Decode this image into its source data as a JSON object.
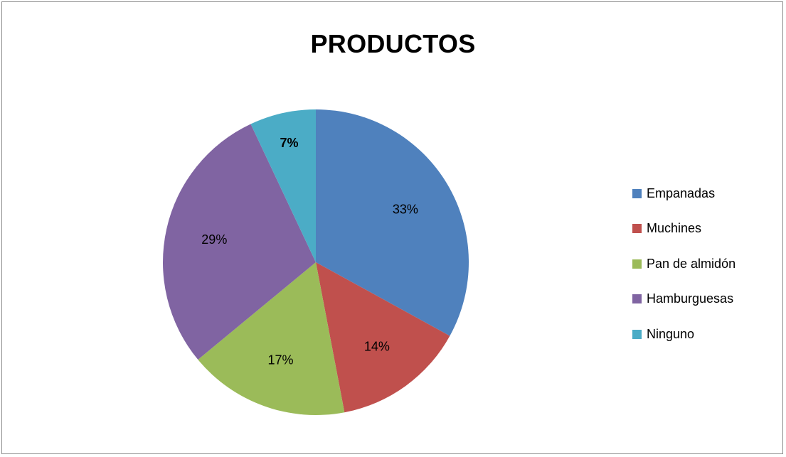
{
  "chart_data": {
    "type": "pie",
    "title": "PRODUCTOS",
    "categories": [
      "Empanadas",
      "Muchines",
      "Pan de almidón",
      "Hamburguesas",
      "Ninguno"
    ],
    "values": [
      33,
      14,
      17,
      29,
      7
    ],
    "data_labels": [
      "33%",
      "14%",
      "17%",
      "29%",
      "7%"
    ],
    "colors": [
      "#4f81bd",
      "#c0504d",
      "#9bbb59",
      "#8064a2",
      "#4bacc6"
    ],
    "legend_position": "right"
  }
}
